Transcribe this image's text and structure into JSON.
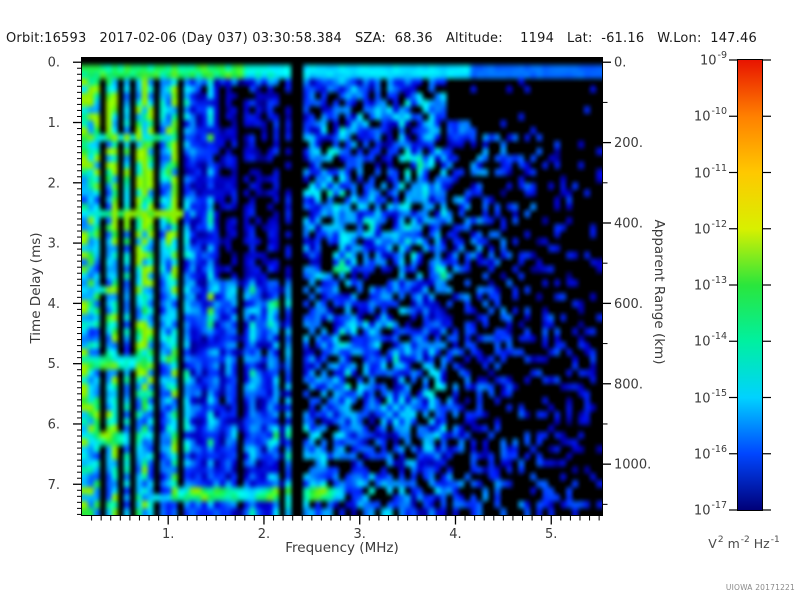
{
  "header": {
    "text": "Orbit:16593   2017-02-06 (Day 037) 03:30:58.384   SZA:  68.36   Altitude:    1194   Lat:  -61.16   W.Lon:  147.46",
    "orbit": "16593",
    "date": "2017-02-06",
    "day_of_year": "037",
    "time_utc": "03:30:58.384",
    "sza_deg": "68.36",
    "altitude_km": "1194",
    "latitude_deg": "-61.16",
    "west_longitude_deg": "147.46"
  },
  "chart_data": {
    "type": "heatmap",
    "description": "Radar sounder ionogram: received spectral density versus sounding frequency and echo time delay",
    "xlabel": "Frequency (MHz)",
    "x_ticks": [
      "1.",
      "2.",
      "3.",
      "4.",
      "5."
    ],
    "x_tick_values": [
      1,
      2,
      3,
      4,
      5
    ],
    "x_minor_step_mhz": 0.1,
    "x_range_mhz": [
      0.1,
      5.53
    ],
    "ylabel": "Time Delay (ms)",
    "y_ticks": [
      "0.",
      "1.",
      "2.",
      "3.",
      "4.",
      "5.",
      "6.",
      "7."
    ],
    "y_tick_values": [
      0,
      1,
      2,
      3,
      4,
      5,
      6,
      7
    ],
    "y_minor_step_ms": 0.1,
    "y_range_ms": [
      -0.07,
      7.51
    ],
    "y2label": "Apparent Range (km)",
    "y2_ticks": [
      "0.",
      "200.",
      "400.",
      "600.",
      "800.",
      "1000."
    ],
    "y2_tick_values": [
      0,
      200,
      400,
      600,
      800,
      1000
    ],
    "y2_minor_step_km": 100,
    "km_per_ms": 150,
    "grid": false,
    "colorbar": {
      "scale": "log",
      "tick_exponents": [
        -9,
        -10,
        -11,
        -12,
        -13,
        -14,
        -15,
        -16,
        -17
      ],
      "tick_base": "10",
      "unit_parts": [
        {
          "base": "V",
          "exp": "2"
        },
        {
          "base": "m",
          "exp": "-2"
        },
        {
          "base": "Hz",
          "exp": "-1"
        }
      ],
      "gradient_top_to_bottom": [
        "#e81400",
        "#ff8000",
        "#ffc800",
        "#d8f000",
        "#2ae63c",
        "#00f0a0",
        "#00d2ff",
        "#0046ff",
        "#000078"
      ]
    },
    "colormap_stops": [
      [
        0.0,
        "#000000"
      ],
      [
        0.045,
        "#00006a"
      ],
      [
        0.12,
        "#0000c8"
      ],
      [
        0.22,
        "#0030ff"
      ],
      [
        0.32,
        "#0077ff"
      ],
      [
        0.42,
        "#00b4ff"
      ],
      [
        0.5,
        "#00e6ff"
      ],
      [
        0.58,
        "#00f0b4"
      ],
      [
        0.66,
        "#19e84b"
      ],
      [
        0.74,
        "#8cf000"
      ],
      [
        0.85,
        "#ffc300"
      ],
      [
        1.0,
        "#ff1400"
      ]
    ],
    "features": {
      "seed": 20171221,
      "freq_gap_mhz": [
        2.31,
        2.44
      ],
      "low_freq_noise_max_mhz": 1.15,
      "midband_max_mhz": 2.31,
      "dark_patch": {
        "freq_mhz": [
          1.45,
          2.31
        ],
        "delay_ms": [
          0.4,
          3.6
        ]
      },
      "top_black_row_ms": 0.1,
      "surface_band_ms": [
        0.1,
        0.33
      ],
      "ionosphere_trace": {
        "delay_ms": [
          7.05,
          7.33
        ],
        "freq_mhz": [
          0.78,
          2.85
        ]
      },
      "harmonic_rows": [
        {
          "delay_ms": 1.25,
          "max_freq_mhz": 0.95,
          "strength": 0.45
        },
        {
          "delay_ms": 2.5,
          "max_freq_mhz": 1.15,
          "strength": 0.6
        },
        {
          "delay_ms": 3.8,
          "max_freq_mhz": 0.45,
          "strength": 0.42
        },
        {
          "delay_ms": 5.0,
          "max_freq_mhz": 0.75,
          "strength": 0.55
        },
        {
          "delay_ms": 6.25,
          "max_freq_mhz": 0.55,
          "strength": 0.5
        }
      ]
    }
  },
  "watermark": "UIOWA 20171221"
}
